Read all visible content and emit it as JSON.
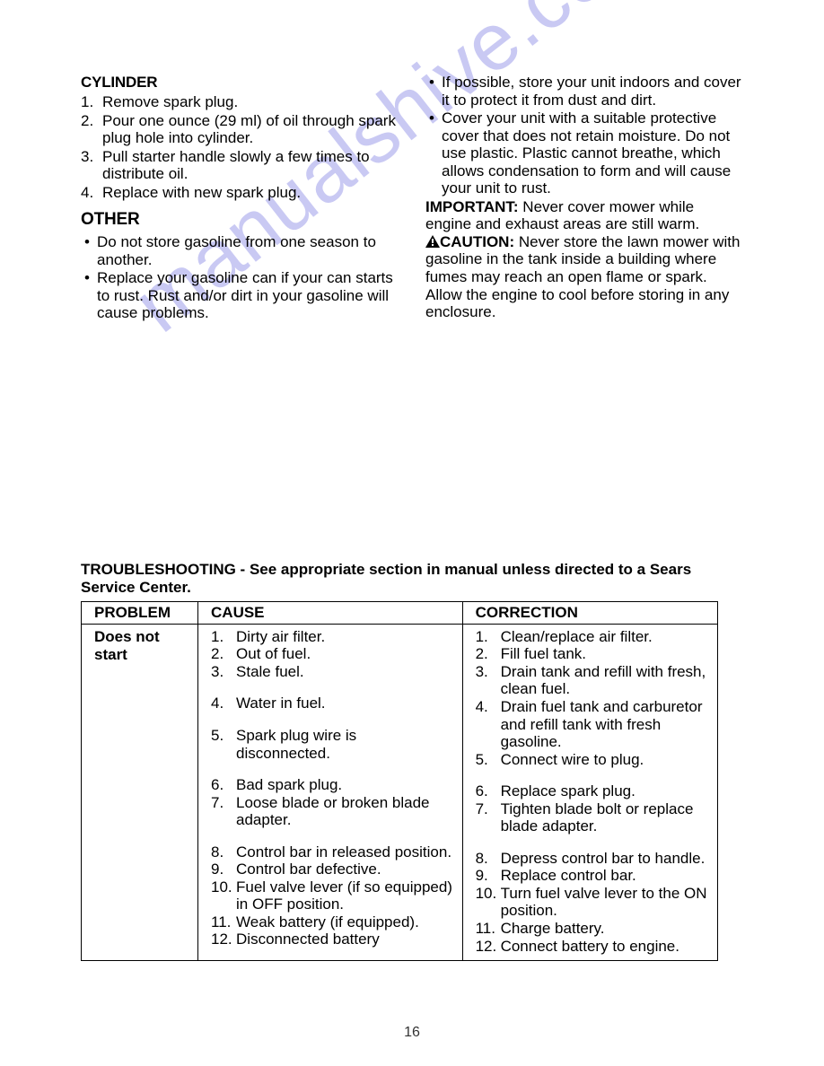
{
  "watermark": "manualshive.com",
  "page_number": "16",
  "left_col": {
    "cylinder_heading": "CYLINDER",
    "cylinder_steps": [
      "Remove spark plug.",
      "Pour one ounce (29 ml) of oil through spark plug hole into cylinder.",
      "Pull starter handle slowly a few times to distribute oil.",
      "Replace with new spark plug."
    ],
    "other_heading": "OTHER",
    "other_bullets": [
      "Do not store gasoline from one season to another.",
      "Replace your gasoline can if your can starts to rust. Rust and/or dirt in your gasoline will cause problems."
    ]
  },
  "right_col": {
    "bullets": [
      "If possible, store your unit indoors and cover it to protect it from dust and dirt.",
      "Cover your unit with a suitable protective cover that does not retain moisture. Do not use plastic. Plastic cannot breathe, which allows condensation to form and will cause your unit to rust."
    ],
    "important_label": "IMPORTANT:",
    "important_text": "Never cover mower while engine and exhaust areas are still warm.",
    "caution_label": "CAUTION:",
    "caution_text": "Never store the lawn mower with gasoline in the tank inside a building where fumes may reach an open flame or spark. Allow the engine to cool before storing in any enclosure."
  },
  "troubleshooting": {
    "heading": "TROUBLESHOOTING - See appropriate section in manual unless directed to a Sears Service Center.",
    "headers": {
      "problem": "PROBLEM",
      "cause": "CAUSE",
      "correction": "CORRECTION"
    },
    "row": {
      "problem": "Does not start",
      "causes": [
        {
          "n": "1.",
          "t": "Dirty air filter."
        },
        {
          "n": "2.",
          "t": "Out of fuel."
        },
        {
          "n": "3.",
          "t": "Stale fuel."
        },
        {
          "n": "4.",
          "t": "Water in fuel."
        },
        {
          "n": "5.",
          "t": "Spark plug wire is disconnected."
        },
        {
          "n": "6.",
          "t": "Bad spark plug."
        },
        {
          "n": "7.",
          "t": "Loose blade or broken blade adapter."
        },
        {
          "n": "8.",
          "t": "Control bar in released position."
        },
        {
          "n": "9.",
          "t": "Control bar defective."
        },
        {
          "n": "10.",
          "t": "Fuel valve lever (if so equipped) in OFF position."
        },
        {
          "n": "11.",
          "t": "Weak battery (if equipped)."
        },
        {
          "n": "12.",
          "t": "Disconnected battery"
        }
      ],
      "corrections": [
        {
          "n": "1.",
          "t": "Clean/replace air filter."
        },
        {
          "n": "2.",
          "t": "Fill fuel tank."
        },
        {
          "n": "3.",
          "t": "Drain tank and refill with fresh, clean fuel."
        },
        {
          "n": "4.",
          "t": "Drain fuel tank and carburetor and refill tank with fresh gasoline."
        },
        {
          "n": "5.",
          "t": "Connect wire to plug."
        },
        {
          "n": "6.",
          "t": "Replace spark plug."
        },
        {
          "n": "7.",
          "t": "Tighten blade bolt or replace blade adapter."
        },
        {
          "n": "8.",
          "t": "Depress control bar to handle."
        },
        {
          "n": "9.",
          "t": "Replace control bar."
        },
        {
          "n": "10.",
          "t": "Turn fuel valve lever to the ON position."
        },
        {
          "n": "11.",
          "t": "Charge battery."
        },
        {
          "n": "12.",
          "t": "Connect battery to engine."
        }
      ]
    }
  }
}
